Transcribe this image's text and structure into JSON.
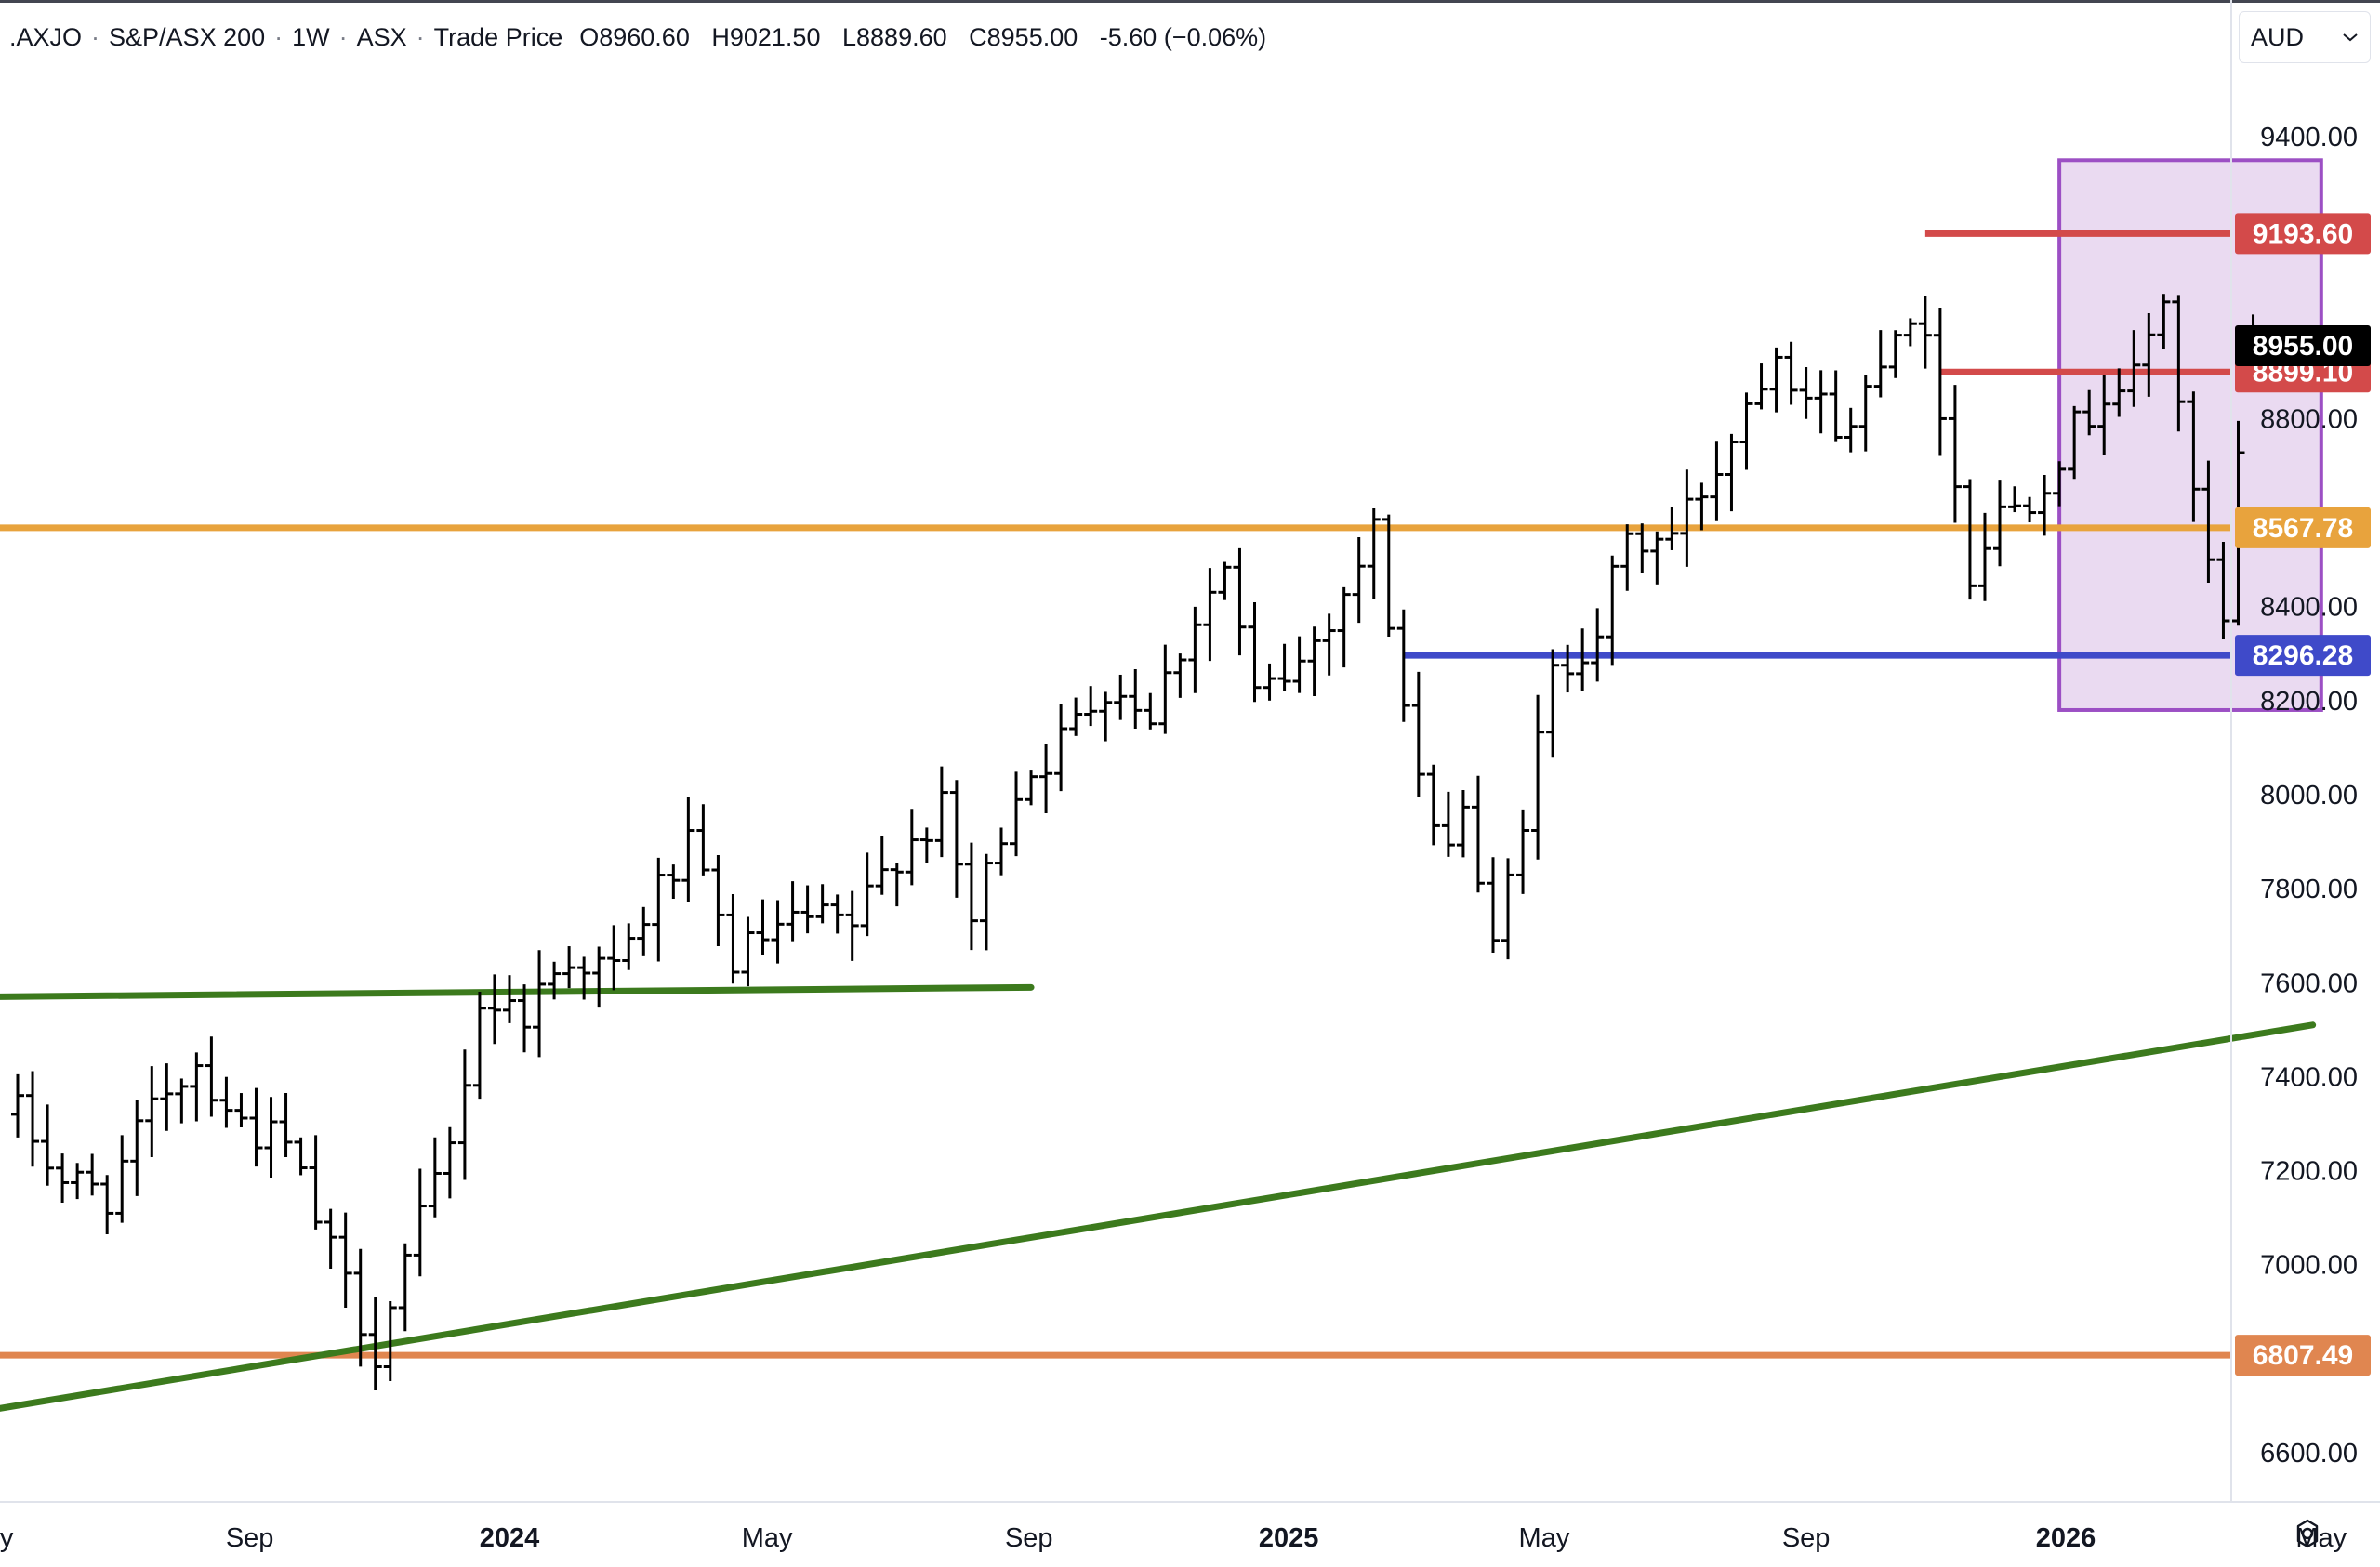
{
  "header": {
    "symbol": ".AXJO",
    "name": "S&P/ASX 200",
    "interval": "1W",
    "exchange": "ASX",
    "price_type": "Trade Price",
    "open_label": "O",
    "open": "8960.60",
    "high_label": "H",
    "high": "9021.50",
    "low_label": "L",
    "low": "8889.60",
    "close_label": "C",
    "close": "8955.00",
    "change": "-5.60 (−0.06%)",
    "separator": "·"
  },
  "currency": {
    "value": "AUD",
    "icon": "chevron-down-icon"
  },
  "settings": {
    "icon": "gear-icon"
  },
  "chart_data": {
    "type": "ohlc-bar",
    "title": "",
    "xlabel": "",
    "ylabel": "",
    "ylim": [
      6520,
      9620
    ],
    "grid": false,
    "legend": "none",
    "y_ticks": [
      6600,
      7000,
      7200,
      7400,
      7600,
      7800,
      8000,
      8200,
      8400,
      8800,
      9400
    ],
    "y_tick_labels": [
      "6600.00",
      "7000.00",
      "7200.00",
      "7400.00",
      "7600.00",
      "7800.00",
      "8000.00",
      "8200.00",
      "8400.00",
      "8800.00",
      "9400.00"
    ],
    "x_ticks": [
      {
        "date": "2023-05-01",
        "label": "May",
        "bold": false
      },
      {
        "date": "2023-09-01",
        "label": "Sep",
        "bold": false
      },
      {
        "date": "2024-01-01",
        "label": "2024",
        "bold": true
      },
      {
        "date": "2024-05-01",
        "label": "May",
        "bold": false
      },
      {
        "date": "2024-09-01",
        "label": "Sep",
        "bold": false
      },
      {
        "date": "2025-01-01",
        "label": "2025",
        "bold": true
      },
      {
        "date": "2025-05-01",
        "label": "May",
        "bold": false
      },
      {
        "date": "2025-09-01",
        "label": "Sep",
        "bold": false
      },
      {
        "date": "2026-01-01",
        "label": "2026",
        "bold": true
      },
      {
        "date": "2026-05-01",
        "label": "May",
        "bold": false
      }
    ],
    "x_range": [
      "2023-05-01",
      "2026-05-01"
    ],
    "anchors": [
      [
        "2023-05-15",
        7320
      ],
      [
        "2023-06-05",
        7180
      ],
      [
        "2023-06-26",
        7150
      ],
      [
        "2023-07-24",
        7380
      ],
      [
        "2023-08-07",
        7430
      ],
      [
        "2023-08-28",
        7300
      ],
      [
        "2023-09-18",
        7250
      ],
      [
        "2023-10-09",
        7020
      ],
      [
        "2023-10-30",
        6820
      ],
      [
        "2023-11-13",
        7000
      ],
      [
        "2023-12-04",
        7250
      ],
      [
        "2023-12-18",
        7560
      ],
      [
        "2024-01-08",
        7540
      ],
      [
        "2024-01-29",
        7660
      ],
      [
        "2024-02-19",
        7620
      ],
      [
        "2024-03-11",
        7800
      ],
      [
        "2024-03-25",
        7880
      ],
      [
        "2024-04-15",
        7650
      ],
      [
        "2024-04-29",
        7690
      ],
      [
        "2024-05-20",
        7730
      ],
      [
        "2024-06-10",
        7720
      ],
      [
        "2024-07-01",
        7880
      ],
      [
        "2024-07-22",
        7960
      ],
      [
        "2024-08-05",
        7730
      ],
      [
        "2024-08-26",
        8020
      ],
      [
        "2024-09-16",
        8110
      ],
      [
        "2024-10-07",
        8240
      ],
      [
        "2024-10-28",
        8180
      ],
      [
        "2024-11-18",
        8380
      ],
      [
        "2024-12-02",
        8480
      ],
      [
        "2024-12-16",
        8200
      ],
      [
        "2025-01-06",
        8280
      ],
      [
        "2025-01-27",
        8430
      ],
      [
        "2025-02-10",
        8560
      ],
      [
        "2025-02-24",
        8190
      ],
      [
        "2025-03-10",
        7890
      ],
      [
        "2025-03-24",
        7980
      ],
      [
        "2025-04-07",
        7660
      ],
      [
        "2025-04-21",
        7960
      ],
      [
        "2025-05-05",
        8250
      ],
      [
        "2025-05-26",
        8360
      ],
      [
        "2025-06-09",
        8530
      ],
      [
        "2025-06-30",
        8550
      ],
      [
        "2025-07-21",
        8700
      ],
      [
        "2025-08-04",
        8840
      ],
      [
        "2025-08-18",
        8960
      ],
      [
        "2025-09-01",
        8850
      ],
      [
        "2025-09-22",
        8770
      ],
      [
        "2025-10-06",
        8950
      ],
      [
        "2025-10-20",
        9040
      ],
      [
        "2025-11-03",
        8840
      ],
      [
        "2025-11-17",
        8480
      ],
      [
        "2025-12-01",
        8600
      ],
      [
        "2025-12-15",
        8640
      ],
      [
        "2025-12-29",
        8730
      ],
      [
        "2026-01-19",
        8860
      ],
      [
        "2026-02-02",
        8880
      ],
      [
        "2026-02-16",
        9060
      ],
      [
        "2026-03-02",
        8620
      ],
      [
        "2026-03-09",
        8480
      ],
      [
        "2026-03-16",
        8350
      ],
      [
        "2026-03-23",
        8700
      ],
      [
        "2026-03-30",
        8955
      ]
    ],
    "overlays": [
      {
        "type": "horizontal-line",
        "price": 9193.6,
        "label": "9193.60",
        "color": "#d34a4a",
        "from": "2025-10-27",
        "to": "2026-05-04"
      },
      {
        "type": "horizontal-line",
        "price": 8899.1,
        "label": "8899.10",
        "color": "#d34a4a",
        "from": "2025-11-03",
        "to": "2026-05-04"
      },
      {
        "type": "horizontal-line",
        "price": 8567.78,
        "label": "8567.78",
        "color": "#e8a33d",
        "from": "2023-05-01",
        "to": "2026-05-04"
      },
      {
        "type": "horizontal-line",
        "price": 8296.28,
        "label": "8296.28",
        "color": "#3f4ac9",
        "from": "2025-02-24",
        "to": "2026-05-04"
      },
      {
        "type": "horizontal-line",
        "price": 6807.49,
        "label": "6807.49",
        "color": "#e08650",
        "from": "2023-05-01",
        "to": "2026-05-04"
      },
      {
        "type": "trend-line",
        "color": "#3c7a1d",
        "p1": [
          "2023-05-01",
          7570
        ],
        "p2": [
          "2024-09-02",
          7590
        ]
      },
      {
        "type": "trend-line",
        "color": "#3c7a1d",
        "p1": [
          "2023-05-01",
          6690
        ],
        "p2": [
          "2026-04-27",
          7510
        ]
      },
      {
        "type": "rectangle",
        "color": "#9c4fc4",
        "fill": "#e6d4ee",
        "from": "2025-12-29",
        "to": "2026-05-01",
        "top": 9350,
        "bottom": 8180
      }
    ],
    "last_price": {
      "value": 8955.0,
      "label": "8955.00",
      "color": "#000000"
    }
  },
  "colors": {
    "bar": "#000000",
    "axis_text": "#131722",
    "axis_border": "#e0e3eb"
  }
}
